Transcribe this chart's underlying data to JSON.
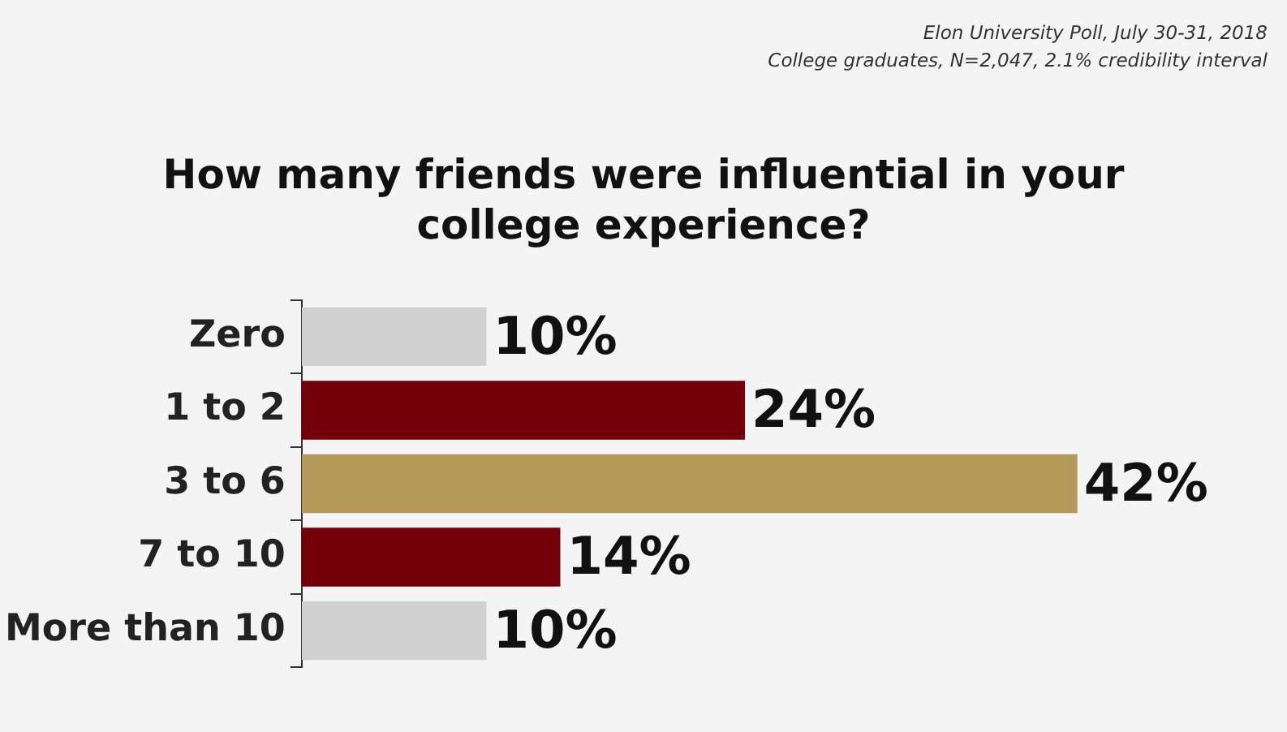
{
  "chart_data": {
    "type": "bar",
    "orientation": "horizontal",
    "title": "How many friends were influential in your college experience?",
    "annotations": [
      "Elon University Poll, July 30-31, 2018",
      "College graduates, N=2,047, 2.1% credibility interval"
    ],
    "categories": [
      "Zero",
      "1 to 2",
      "3 to 6",
      "7 to 10",
      "More than 10"
    ],
    "values": [
      10,
      24,
      42,
      14,
      10
    ],
    "value_labels": [
      "10%",
      "24%",
      "42%",
      "14%",
      "10%"
    ],
    "colors": [
      "#d0d0d0",
      "#73000a",
      "#b5995a",
      "#73000a",
      "#d0d0d0"
    ],
    "grid": false,
    "legend": false
  }
}
